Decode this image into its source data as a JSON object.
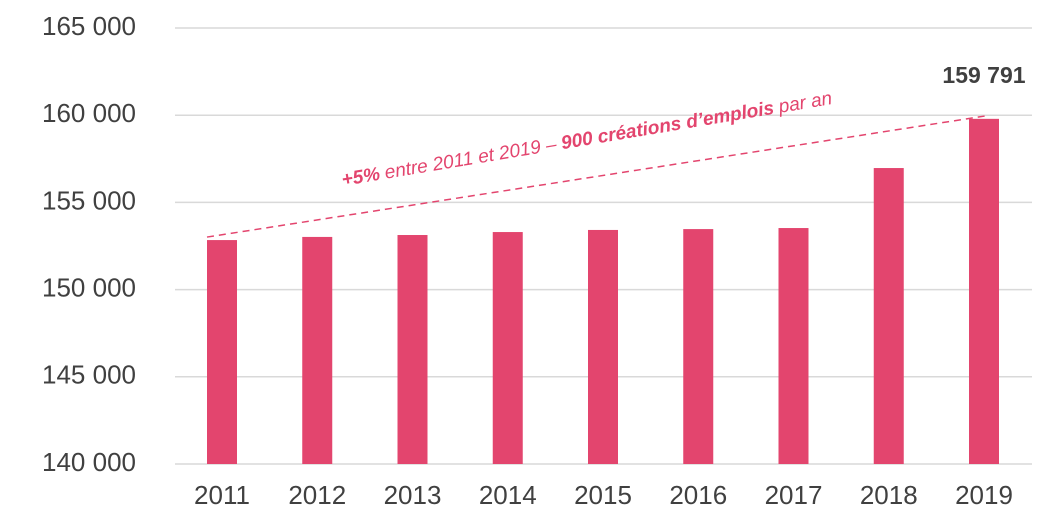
{
  "chart_data": {
    "type": "bar",
    "categories": [
      "2011",
      "2012",
      "2013",
      "2014",
      "2015",
      "2016",
      "2017",
      "2018",
      "2019"
    ],
    "values": [
      152840,
      153020,
      153130,
      153300,
      153420,
      153470,
      153530,
      156970,
      159791
    ],
    "value_labels": [
      null,
      null,
      null,
      null,
      null,
      null,
      null,
      null,
      "159 791"
    ],
    "color": "#e3456e",
    "ylim": [
      140000,
      165000
    ],
    "yticks": [
      {
        "value": 140000,
        "label": "140 000"
      },
      {
        "value": 145000,
        "label": "145 000"
      },
      {
        "value": 150000,
        "label": "150 000"
      },
      {
        "value": 155000,
        "label": "155 000"
      },
      {
        "value": 160000,
        "label": "160 000"
      },
      {
        "value": 165000,
        "label": "165 000"
      }
    ],
    "grid": true,
    "annotation": [
      "+5%",
      "entre 2011 et 2019 –",
      "900 créations d’emplois",
      "par an"
    ]
  }
}
